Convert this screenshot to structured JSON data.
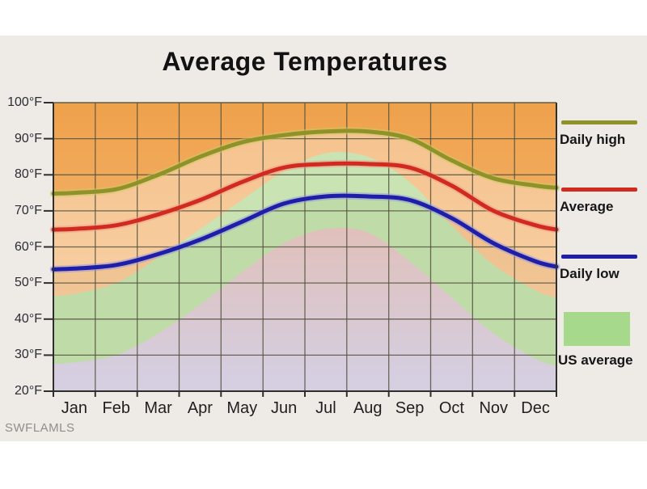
{
  "page": {
    "watermark": "SWFLAMLS"
  },
  "chart_data": {
    "type": "line",
    "title": "Average Temperatures",
    "x_labels": [
      "Jan",
      "Feb",
      "Mar",
      "Apr",
      "May",
      "Jun",
      "Jul",
      "Aug",
      "Sep",
      "Oct",
      "Nov",
      "Dec"
    ],
    "y_tick_labels": [
      "100°F",
      "90°F",
      "80°F",
      "70°F",
      "60°F",
      "50°F",
      "40°F",
      "30°F",
      "20°F"
    ],
    "y_tick_values": [
      100,
      90,
      80,
      70,
      60,
      50,
      40,
      30,
      20
    ],
    "ylim": [
      20,
      100
    ],
    "unit": "°F",
    "grid": true,
    "legend_position": "right",
    "series": [
      {
        "name": "Daily high",
        "kind": "line",
        "color": "#8f9129",
        "halo": "#ccc966",
        "values": [
          75,
          76,
          80,
          85,
          89,
          91,
          92,
          92,
          90,
          84,
          79,
          77
        ]
      },
      {
        "name": "Average",
        "kind": "line",
        "color": "#d02b1e",
        "halo": "#f09a8c",
        "values": [
          65,
          66,
          69,
          73,
          78,
          82,
          83,
          83,
          82,
          77,
          70,
          66
        ]
      },
      {
        "name": "Daily low",
        "kind": "line",
        "color": "#1e1ea8",
        "halo": "#9394dd",
        "values": [
          54,
          55,
          58,
          62,
          67,
          72,
          74,
          74,
          73,
          68,
          61,
          56
        ]
      },
      {
        "name": "US average high",
        "kind": "area_boundary",
        "color": "#a6d98c",
        "values": [
          47,
          50,
          57,
          65,
          73,
          81,
          86,
          85,
          78,
          66,
          55,
          48
        ]
      },
      {
        "name": "US average low",
        "kind": "area_boundary",
        "color": "#dfaaa0",
        "values": [
          28,
          30,
          36,
          44,
          53,
          61,
          65,
          64,
          56,
          46,
          36,
          29
        ]
      }
    ],
    "legend": [
      {
        "label": "Daily high",
        "swatch": "line",
        "color": "#8f9129"
      },
      {
        "label": "Average",
        "swatch": "line",
        "color": "#d02b1e"
      },
      {
        "label": "Daily low",
        "swatch": "line",
        "color": "#1e1ea8"
      },
      {
        "label": "US average",
        "swatch": "box",
        "color": "#a6d98c"
      }
    ],
    "colors": {
      "background_top": "#efa14b",
      "background_bottom": "#f5c286",
      "us_band_green": "#a6d98c",
      "below_us_low_top": "#dfaaa0",
      "below_us_low_bottom": "#c9c5e8",
      "city_band_overlay": "rgba(255,243,235,0.40)",
      "under_low_overlay": "rgba(238,224,219,0.35)",
      "grid": "#55523f",
      "axis": "#2e2e2e"
    }
  }
}
